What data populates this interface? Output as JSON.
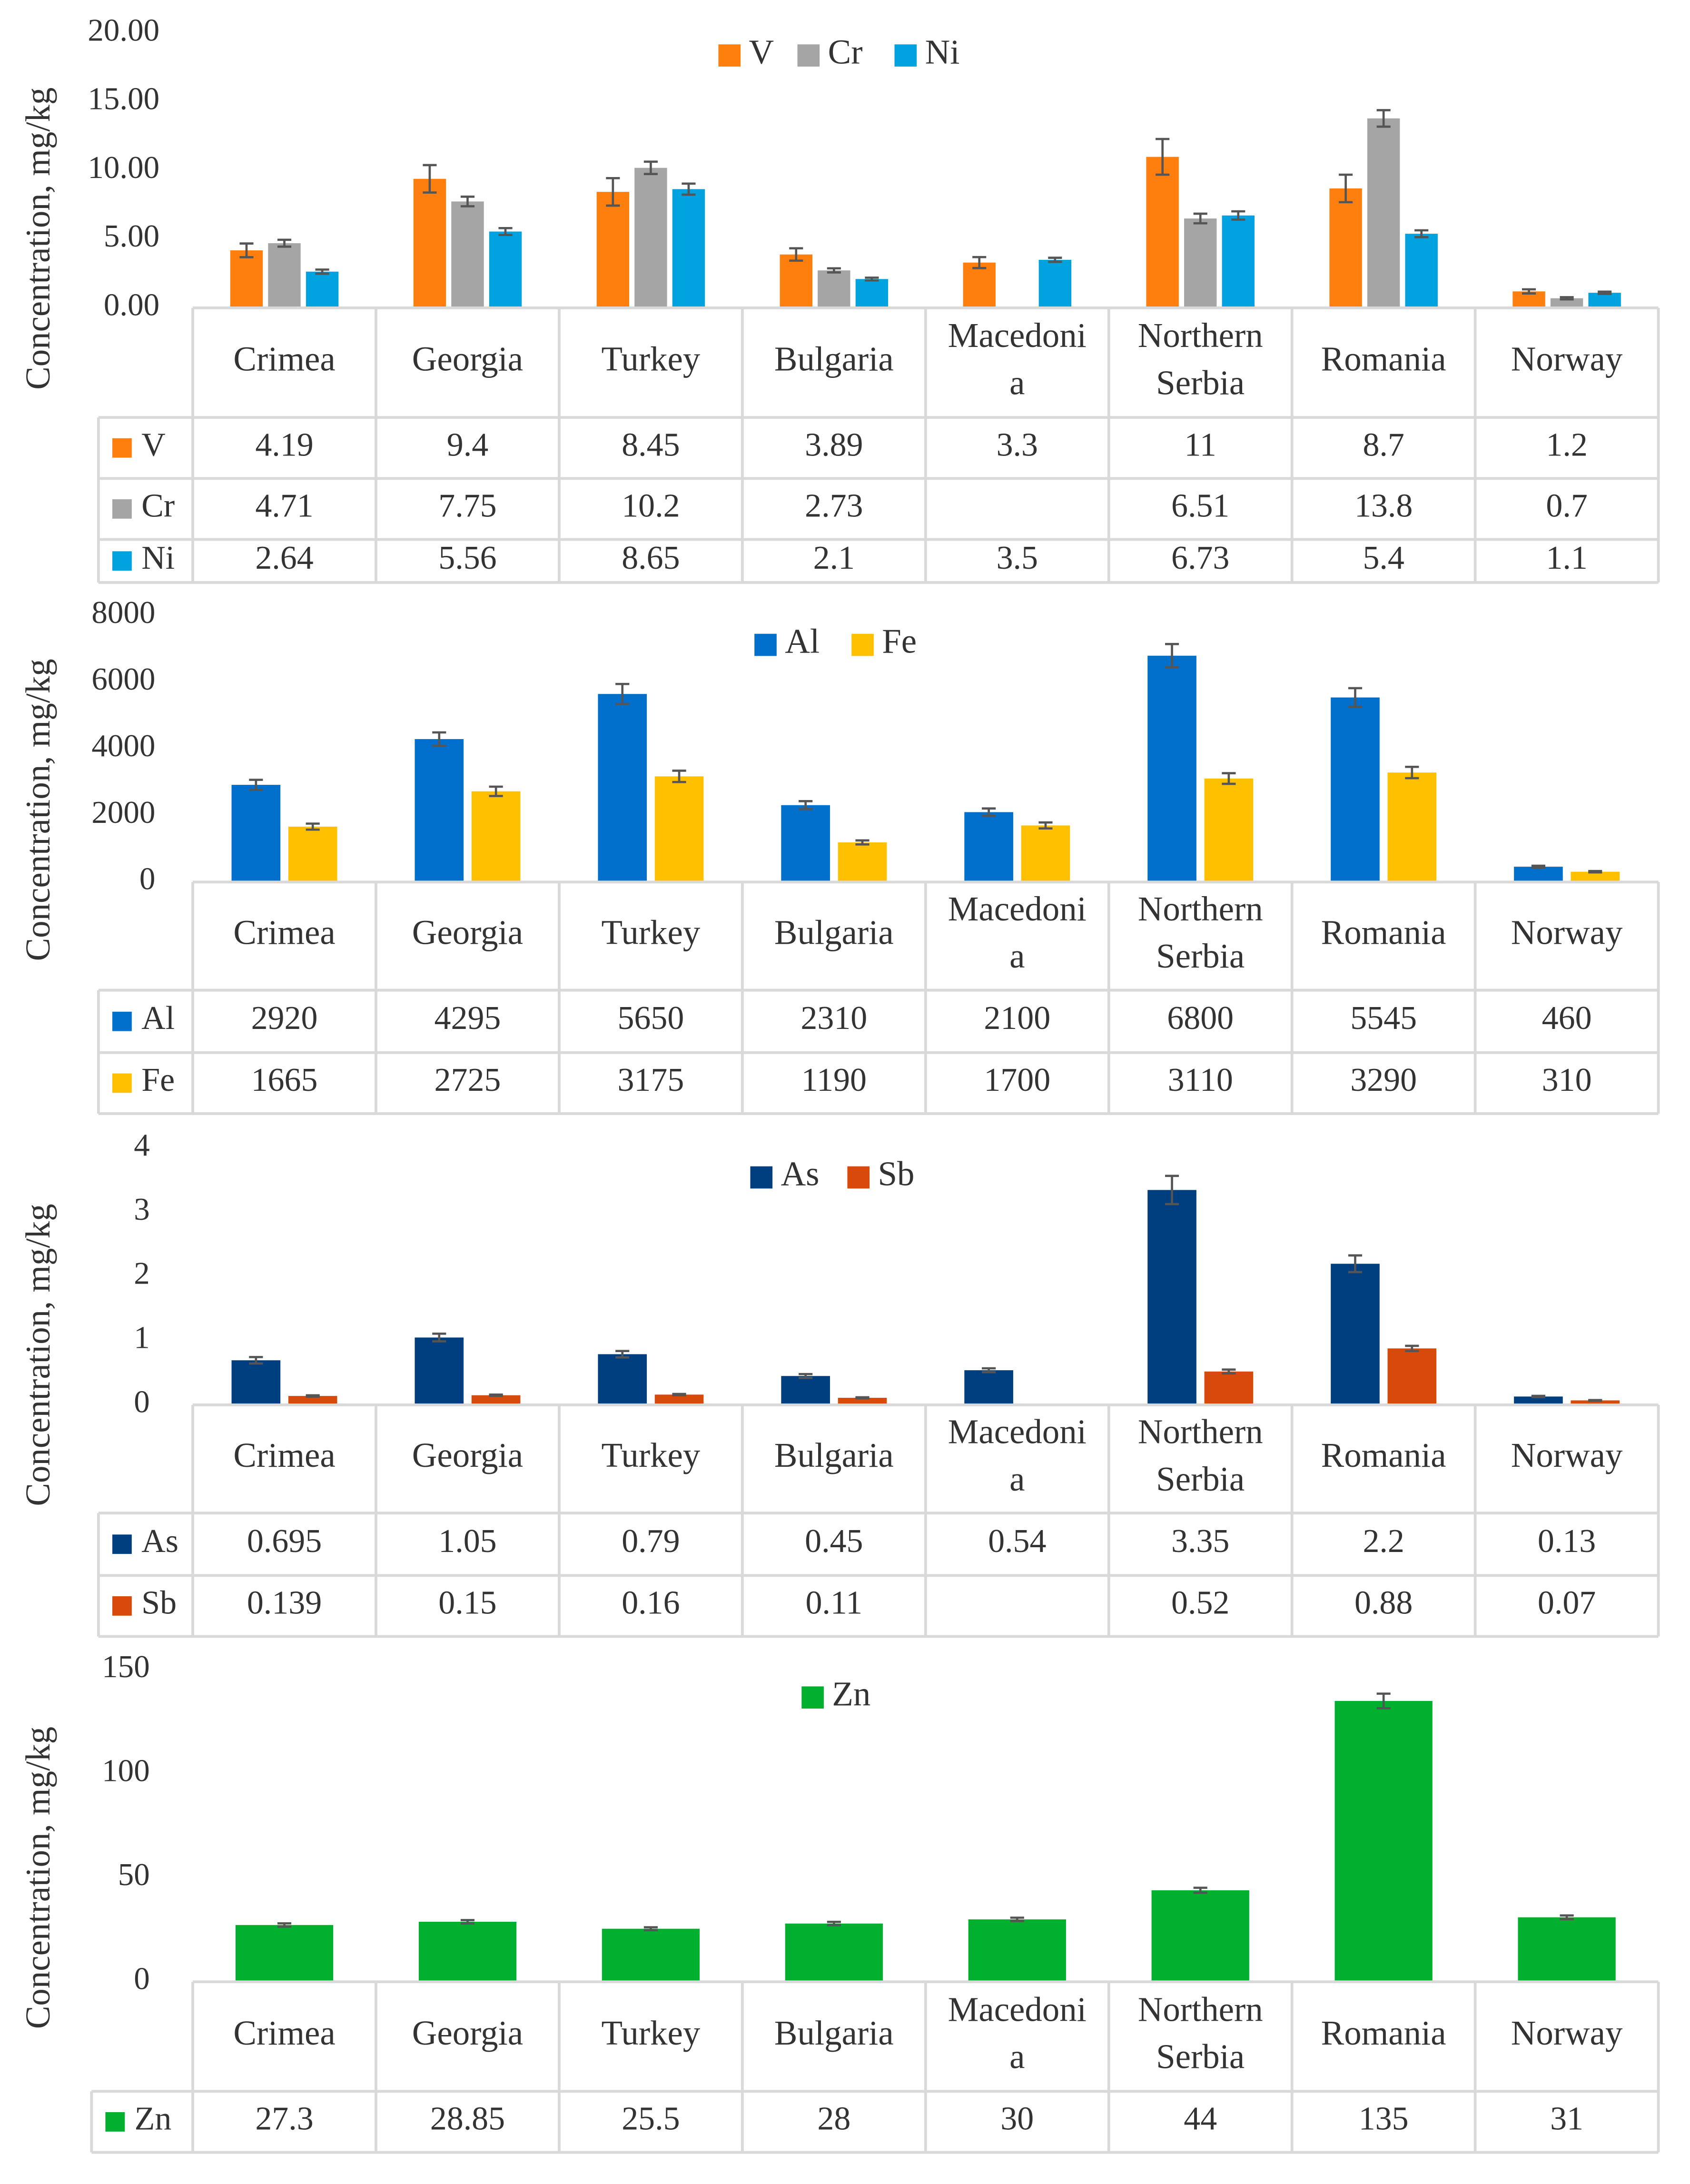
{
  "chart_data": [
    {
      "type": "bar",
      "ylabel": "Concentration, mg/kg",
      "ylim": [
        0,
        20
      ],
      "yticks": [
        "20.00",
        "15.00",
        "10.00",
        "5.00",
        "0.00"
      ],
      "categories": [
        "Crimea",
        "Georgia",
        "Turkey",
        "Bulgaria",
        "Macedonia",
        "Northern Serbia",
        "Romania",
        "Norway"
      ],
      "category_lines": [
        [
          "Crimea"
        ],
        [
          "Georgia"
        ],
        [
          "Turkey"
        ],
        [
          "Bulgaria"
        ],
        [
          "Macedoni",
          "a"
        ],
        [
          "Northern",
          "Serbia"
        ],
        [
          "Romania"
        ],
        [
          "Norway"
        ]
      ],
      "series": [
        {
          "name": "V",
          "color": "#FF7F0E",
          "values": [
            4.19,
            9.4,
            8.45,
            3.89,
            3.3,
            11,
            8.7,
            1.2
          ],
          "labels": [
            "4.19",
            "9.4",
            "8.45",
            "3.89",
            "3.3",
            "11",
            "8.7",
            "1.2"
          ],
          "errors": [
            0.5,
            1.0,
            1.0,
            0.45,
            0.4,
            1.3,
            1.0,
            0.15
          ]
        },
        {
          "name": "Cr",
          "color": "#A5A5A5",
          "values": [
            4.71,
            7.75,
            10.2,
            2.73,
            null,
            6.51,
            13.8,
            0.7
          ],
          "labels": [
            "4.71",
            "7.75",
            "10.2",
            "2.73",
            "",
            "6.51",
            "13.8",
            "0.7"
          ],
          "errors": [
            0.25,
            0.35,
            0.45,
            0.15,
            0,
            0.35,
            0.6,
            0.08
          ]
        },
        {
          "name": "Ni",
          "color": "#00A2E0",
          "values": [
            2.64,
            5.56,
            8.65,
            2.1,
            3.5,
            6.73,
            5.4,
            1.1
          ],
          "labels": [
            "2.64",
            "5.56",
            "8.65",
            "2.1",
            "3.5",
            "6.73",
            "5.4",
            "1.1"
          ],
          "errors": [
            0.15,
            0.25,
            0.4,
            0.1,
            0.15,
            0.3,
            0.25,
            0.08
          ]
        }
      ]
    },
    {
      "type": "bar",
      "ylabel": "Concentration, mg/kg",
      "ylim": [
        0,
        8000
      ],
      "yticks": [
        "8000",
        "6000",
        "4000",
        "2000",
        "0"
      ],
      "categories": [
        "Crimea",
        "Georgia",
        "Turkey",
        "Bulgaria",
        "Macedonia",
        "Northern Serbia",
        "Romania",
        "Norway"
      ],
      "category_lines": [
        [
          "Crimea"
        ],
        [
          "Georgia"
        ],
        [
          "Turkey"
        ],
        [
          "Bulgaria"
        ],
        [
          "Macedoni",
          "a"
        ],
        [
          "Northern",
          "Serbia"
        ],
        [
          "Romania"
        ],
        [
          "Norway"
        ]
      ],
      "series": [
        {
          "name": "Al",
          "color": "#0070CC",
          "values": [
            2920,
            4295,
            5650,
            2310,
            2100,
            6800,
            5545,
            460
          ],
          "labels": [
            "2920",
            "4295",
            "5650",
            "2310",
            "2100",
            "6800",
            "5545",
            "460"
          ],
          "errors": [
            150,
            200,
            300,
            120,
            110,
            350,
            280,
            30
          ]
        },
        {
          "name": "Fe",
          "color": "#FFC000",
          "values": [
            1665,
            2725,
            3175,
            1190,
            1700,
            3110,
            3290,
            310
          ],
          "labels": [
            "1665",
            "2725",
            "3175",
            "1190",
            "1700",
            "3110",
            "3290",
            "310"
          ],
          "errors": [
            90,
            140,
            170,
            60,
            90,
            160,
            170,
            20
          ]
        }
      ]
    },
    {
      "type": "bar",
      "ylabel": "Concentration, mg/kg",
      "ylim": [
        0,
        4
      ],
      "yticks": [
        "4",
        "3",
        "2",
        "1",
        "0"
      ],
      "categories": [
        "Crimea",
        "Georgia",
        "Turkey",
        "Bulgaria",
        "Macedonia",
        "Northern Serbia",
        "Romania",
        "Norway"
      ],
      "category_lines": [
        [
          "Crimea"
        ],
        [
          "Georgia"
        ],
        [
          "Turkey"
        ],
        [
          "Bulgaria"
        ],
        [
          "Macedoni",
          "a"
        ],
        [
          "Northern",
          "Serbia"
        ],
        [
          "Romania"
        ],
        [
          "Norway"
        ]
      ],
      "series": [
        {
          "name": "As",
          "color": "#003F7F",
          "values": [
            0.695,
            1.05,
            0.79,
            0.45,
            0.54,
            3.35,
            2.2,
            0.13
          ],
          "labels": [
            "0.695",
            "1.05",
            "0.79",
            "0.45",
            "0.54",
            "3.35",
            "2.2",
            "0.13"
          ],
          "errors": [
            0.05,
            0.06,
            0.05,
            0.03,
            0.03,
            0.22,
            0.13,
            0.01
          ]
        },
        {
          "name": "Sb",
          "color": "#D84A0C",
          "values": [
            0.139,
            0.15,
            0.16,
            0.11,
            null,
            0.52,
            0.88,
            0.07
          ],
          "labels": [
            "0.139",
            "0.15",
            "0.16",
            "0.11",
            "",
            "0.52",
            "0.88",
            "0.07"
          ],
          "errors": [
            0.01,
            0.01,
            0.01,
            0.008,
            0,
            0.03,
            0.04,
            0.005
          ]
        }
      ]
    },
    {
      "type": "bar",
      "ylabel": "Concentration, mg/kg",
      "ylim": [
        0,
        150
      ],
      "yticks": [
        "150",
        "100",
        "50",
        "0"
      ],
      "categories": [
        "Crimea",
        "Georgia",
        "Turkey",
        "Bulgaria",
        "Macedonia",
        "Northern Serbia",
        "Romania",
        "Norway"
      ],
      "category_lines": [
        [
          "Crimea"
        ],
        [
          "Georgia"
        ],
        [
          "Turkey"
        ],
        [
          "Bulgaria"
        ],
        [
          "Macedoni",
          "a"
        ],
        [
          "Northern",
          "Serbia"
        ],
        [
          "Romania"
        ],
        [
          "Norway"
        ]
      ],
      "series": [
        {
          "name": "Zn",
          "color": "#00B02E",
          "values": [
            27.3,
            28.85,
            25.5,
            28,
            30,
            44,
            135,
            31
          ],
          "labels": [
            "27.3",
            "28.85",
            "25.5",
            "28",
            "30",
            "44",
            "135",
            "31"
          ],
          "errors": [
            0.8,
            0.8,
            0.7,
            0.8,
            0.8,
            1.2,
            3.5,
            0.9
          ]
        }
      ]
    }
  ]
}
